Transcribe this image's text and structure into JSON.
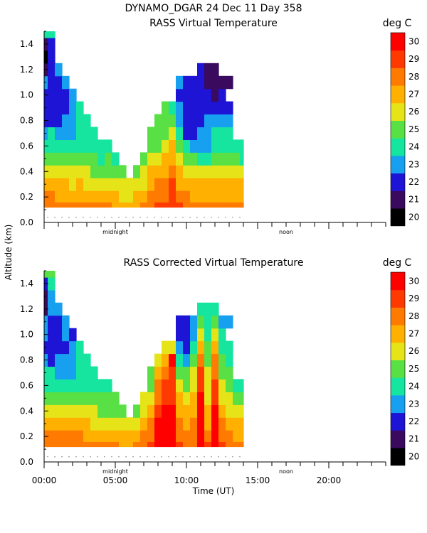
{
  "page": {
    "header_line": "DYNAMO_DGAR  24 Dec 11 Day 358",
    "xlabel": "Time (UT)",
    "ylabel": "Altitude (km)"
  },
  "colorscale": {
    "unit": "deg C",
    "levels": [
      20,
      21,
      22,
      23,
      24,
      25,
      26,
      27,
      28,
      29,
      30
    ],
    "level_labels": [
      "20",
      "21",
      "22",
      "23",
      "24",
      "25",
      "26",
      "27",
      "28",
      "29",
      "30"
    ],
    "colors": [
      "#000000",
      "#3a0a5e",
      "#1e14d6",
      "#18a0f0",
      "#16e5a0",
      "#58e045",
      "#e6e418",
      "#ffb000",
      "#ff7a00",
      "#ff3a00",
      "#ff0000",
      "#ff0000"
    ]
  },
  "chart_data": [
    {
      "type": "heatmap",
      "title": "RASS Virtual Temperature",
      "xlabel": "Time (UT)",
      "ylabel": "Altitude (km)",
      "xlim": [
        0,
        24
      ],
      "ylim": [
        0,
        1.5
      ],
      "x_tick_labels": [
        "00:00",
        "05:00",
        "10:00",
        "15:00",
        "20:00"
      ],
      "y_tick_labels": [
        "0.0",
        "0.2",
        "0.4",
        "0.6",
        "0.8",
        "1.0",
        "1.2",
        "1.4"
      ],
      "x_annotations": [
        "midnight",
        "noon"
      ],
      "x": [
        0.0,
        0.5,
        1.0,
        1.5,
        2.0,
        2.5,
        3.0,
        3.5,
        4.0,
        4.5,
        5.0,
        5.5,
        6.0,
        6.5,
        7.0,
        7.5,
        8.0,
        8.5,
        9.0,
        9.5,
        10.0,
        10.5,
        11.0,
        11.5,
        12.0,
        12.5,
        13.0,
        13.5,
        14.0
      ],
      "y": [
        0.12,
        0.2,
        0.3,
        0.4,
        0.5,
        0.6,
        0.7,
        0.8,
        0.9,
        1.0,
        1.1,
        1.2,
        1.3,
        1.4,
        1.5
      ],
      "z": [
        [
          28.6,
          28.7,
          28.6,
          28.5,
          28.4,
          28.5,
          28.3,
          28.2,
          28.0,
          28.0,
          27.8,
          27.7,
          27.6,
          27.8,
          28.2,
          28.6,
          29.0,
          29.3,
          29.8,
          29.2,
          28.9,
          28.8,
          28.8,
          28.8,
          28.9,
          28.6,
          28.4,
          28.3,
          28.1
        ],
        [
          28.0,
          28.0,
          27.9,
          27.8,
          27.7,
          27.8,
          27.6,
          27.5,
          27.2,
          27.2,
          27.0,
          26.9,
          26.8,
          27.0,
          27.5,
          28.0,
          28.6,
          28.8,
          29.5,
          28.4,
          28.0,
          27.8,
          27.6,
          27.7,
          27.9,
          27.8,
          27.5,
          27.7,
          27.6
        ],
        [
          27.0,
          27.2,
          27.1,
          27.0,
          26.9,
          27.0,
          26.8,
          26.7,
          26.3,
          26.2,
          26.1,
          26.0,
          26.0,
          26.4,
          26.9,
          27.4,
          28.0,
          28.2,
          29.0,
          27.8,
          27.4,
          27.3,
          27.2,
          27.4,
          27.7,
          27.6,
          27.4,
          27.2,
          27.0
        ],
        [
          26.2,
          26.4,
          26.3,
          26.2,
          26.1,
          26.2,
          26.0,
          25.9,
          25.6,
          25.6,
          25.4,
          25.6,
          null,
          25.6,
          26.3,
          27.0,
          27.6,
          27.8,
          28.4,
          27.2,
          26.7,
          26.2,
          26.1,
          26.2,
          26.7,
          26.8,
          26.5,
          26.4,
          26.2
        ],
        [
          25.4,
          25.6,
          25.4,
          25.3,
          25.2,
          25.3,
          25.1,
          25.2,
          24.8,
          25.0,
          24.8,
          null,
          null,
          null,
          25.6,
          26.1,
          26.7,
          27.0,
          27.9,
          26.5,
          25.6,
          25.0,
          24.9,
          24.8,
          25.4,
          25.6,
          25.0,
          25.0,
          24.6
        ],
        [
          24.6,
          24.7,
          24.5,
          24.4,
          24.3,
          24.4,
          24.6,
          24.6,
          24.3,
          24.7,
          null,
          null,
          null,
          null,
          null,
          25.2,
          25.9,
          26.4,
          27.0,
          25.4,
          24.5,
          23.8,
          23.6,
          23.6,
          24.5,
          24.8,
          24.3,
          24.2,
          24.4
        ],
        [
          23.9,
          24.0,
          23.8,
          23.6,
          23.6,
          24.1,
          24.4,
          24.6,
          null,
          null,
          null,
          null,
          null,
          null,
          null,
          25.0,
          25.4,
          25.8,
          26.4,
          24.0,
          22.6,
          22.8,
          23.1,
          23.5,
          24.1,
          24.2,
          24.0,
          null,
          null
        ],
        [
          22.8,
          22.2,
          22.8,
          23.0,
          23.6,
          24.0,
          24.4,
          null,
          null,
          null,
          null,
          null,
          null,
          null,
          null,
          null,
          25.2,
          25.6,
          25.4,
          23.4,
          22.2,
          22.4,
          22.7,
          23.2,
          23.6,
          23.8,
          23.6,
          null,
          null
        ],
        [
          22.6,
          22.0,
          22.2,
          22.6,
          23.4,
          24.0,
          null,
          null,
          null,
          null,
          null,
          null,
          null,
          null,
          null,
          null,
          null,
          25.0,
          24.4,
          23.0,
          22.0,
          22.2,
          22.6,
          22.4,
          22.2,
          22.4,
          22.5,
          null,
          null
        ],
        [
          22.8,
          22.2,
          22.2,
          22.7,
          23.5,
          null,
          null,
          null,
          null,
          null,
          null,
          null,
          null,
          null,
          null,
          null,
          null,
          null,
          null,
          22.8,
          22.2,
          22.6,
          22.3,
          22.0,
          21.8,
          22.0,
          null,
          null,
          null
        ],
        [
          23.0,
          22.6,
          22.6,
          23.2,
          null,
          null,
          null,
          null,
          null,
          null,
          null,
          null,
          null,
          null,
          null,
          null,
          null,
          null,
          null,
          23.0,
          22.6,
          22.8,
          22.3,
          21.8,
          21.6,
          21.6,
          21.4,
          null,
          null
        ],
        [
          21.2,
          22.6,
          23.0,
          null,
          null,
          null,
          null,
          null,
          null,
          null,
          null,
          null,
          null,
          null,
          null,
          null,
          null,
          null,
          null,
          null,
          null,
          null,
          22.5,
          21.9,
          21.6,
          null,
          null,
          null,
          null
        ],
        [
          20.6,
          22.0,
          null,
          null,
          null,
          null,
          null,
          null,
          null,
          null,
          null,
          null,
          null,
          null,
          null,
          null,
          null,
          null,
          null,
          null,
          null,
          null,
          null,
          null,
          null,
          null,
          null,
          null,
          null
        ],
        [
          21.6,
          22.8,
          null,
          null,
          null,
          null,
          null,
          null,
          null,
          null,
          null,
          null,
          null,
          null,
          null,
          null,
          null,
          null,
          null,
          null,
          null,
          null,
          null,
          null,
          null,
          null,
          null,
          null,
          null
        ],
        [
          24.4,
          24.8,
          null,
          null,
          null,
          null,
          null,
          null,
          null,
          null,
          null,
          null,
          null,
          null,
          null,
          null,
          null,
          null,
          null,
          null,
          null,
          null,
          null,
          null,
          null,
          null,
          null,
          null,
          null
        ]
      ]
    },
    {
      "type": "heatmap",
      "title": "RASS Corrected Virtual Temperature",
      "xlabel": "Time (UT)",
      "ylabel": "Altitude (km)",
      "xlim": [
        0,
        24
      ],
      "ylim": [
        0,
        1.5
      ],
      "x_tick_labels": [
        "00:00",
        "05:00",
        "10:00",
        "15:00",
        "20:00"
      ],
      "y_tick_labels": [
        "0.0",
        "0.2",
        "0.4",
        "0.6",
        "0.8",
        "1.0",
        "1.2",
        "1.4"
      ],
      "x_annotations": [
        "midnight",
        "noon"
      ],
      "x": [
        0.0,
        0.5,
        1.0,
        1.5,
        2.0,
        2.5,
        3.0,
        3.5,
        4.0,
        4.5,
        5.0,
        5.5,
        6.0,
        6.5,
        7.0,
        7.5,
        8.0,
        8.5,
        9.0,
        9.5,
        10.0,
        10.5,
        11.0,
        11.5,
        12.0,
        12.5,
        13.0,
        13.5,
        14.0
      ],
      "y": [
        0.12,
        0.2,
        0.3,
        0.4,
        0.5,
        0.6,
        0.7,
        0.8,
        0.9,
        1.0,
        1.1,
        1.2,
        1.3,
        1.4,
        1.5
      ],
      "z": [
        [
          28.8,
          28.9,
          28.8,
          28.7,
          28.6,
          28.6,
          28.5,
          28.4,
          28.2,
          28.2,
          28.0,
          27.9,
          27.9,
          28.1,
          28.6,
          29.4,
          30.2,
          30.6,
          30.6,
          29.2,
          28.8,
          28.9,
          30.4,
          29.0,
          30.3,
          29.2,
          28.7,
          28.5,
          28.4
        ],
        [
          28.2,
          28.3,
          28.2,
          28.1,
          28.0,
          28.0,
          27.8,
          27.7,
          27.4,
          27.4,
          27.2,
          27.1,
          27.1,
          27.4,
          28.0,
          28.8,
          30.2,
          30.4,
          30.6,
          28.6,
          28.3,
          28.6,
          30.4,
          28.4,
          30.2,
          28.6,
          28.2,
          27.9,
          27.8
        ],
        [
          27.4,
          27.6,
          27.4,
          27.3,
          27.2,
          27.2,
          27.0,
          26.9,
          26.6,
          26.5,
          26.4,
          26.3,
          26.3,
          26.8,
          27.4,
          28.1,
          30.0,
          30.3,
          30.5,
          28.0,
          27.6,
          28.2,
          30.4,
          27.8,
          30.1,
          28.1,
          27.6,
          27.2,
          27.0
        ],
        [
          26.6,
          26.8,
          26.6,
          26.5,
          26.4,
          26.3,
          26.2,
          26.1,
          25.9,
          25.8,
          25.6,
          25.8,
          null,
          25.9,
          26.7,
          27.5,
          29.6,
          30.0,
          30.2,
          27.5,
          27.0,
          27.8,
          30.3,
          27.4,
          30.0,
          27.4,
          26.8,
          26.4,
          26.2
        ],
        [
          25.8,
          25.9,
          25.7,
          25.6,
          25.5,
          25.4,
          25.3,
          25.4,
          25.1,
          25.2,
          25.0,
          null,
          null,
          null,
          26.0,
          26.7,
          28.8,
          29.4,
          29.6,
          27.0,
          26.4,
          27.2,
          30.2,
          26.8,
          29.6,
          26.8,
          26.2,
          25.6,
          25.2
        ],
        [
          24.8,
          24.9,
          24.7,
          24.6,
          24.5,
          24.6,
          24.8,
          24.8,
          24.6,
          24.9,
          null,
          null,
          null,
          null,
          null,
          25.9,
          28.0,
          29.0,
          29.4,
          26.2,
          25.8,
          26.6,
          29.8,
          26.4,
          29.2,
          26.2,
          25.6,
          24.9,
          24.6
        ],
        [
          24.0,
          24.1,
          23.9,
          23.8,
          23.8,
          24.2,
          24.6,
          24.8,
          null,
          null,
          null,
          null,
          null,
          null,
          null,
          25.5,
          27.0,
          28.4,
          29.0,
          25.4,
          25.2,
          26.0,
          29.2,
          26.0,
          28.6,
          25.6,
          25.0,
          null,
          null
        ],
        [
          23.0,
          22.6,
          23.0,
          23.2,
          23.8,
          24.2,
          24.6,
          null,
          null,
          null,
          null,
          null,
          null,
          null,
          null,
          null,
          26.0,
          27.6,
          30.4,
          24.6,
          23.4,
          25.2,
          28.6,
          25.6,
          28.2,
          25.0,
          24.5,
          null,
          null
        ],
        [
          22.8,
          22.4,
          22.6,
          22.8,
          23.6,
          24.2,
          null,
          null,
          null,
          null,
          null,
          null,
          null,
          null,
          null,
          null,
          null,
          26.8,
          26.0,
          23.8,
          22.8,
          24.4,
          27.6,
          25.2,
          27.4,
          24.4,
          24.0,
          null,
          null
        ],
        [
          23.0,
          22.6,
          22.6,
          23.0,
          22.2,
          null,
          null,
          null,
          null,
          null,
          null,
          null,
          null,
          null,
          null,
          null,
          null,
          null,
          null,
          22.4,
          22.2,
          23.6,
          26.8,
          24.8,
          26.6,
          24.0,
          null,
          null,
          null
        ],
        [
          23.2,
          22.8,
          22.8,
          23.4,
          null,
          null,
          null,
          null,
          null,
          null,
          null,
          null,
          null,
          null,
          null,
          null,
          null,
          null,
          null,
          22.2,
          22.0,
          23.0,
          25.6,
          24.4,
          25.4,
          23.8,
          23.4,
          null,
          null
        ],
        [
          21.4,
          23.2,
          23.4,
          null,
          null,
          null,
          null,
          null,
          null,
          null,
          null,
          null,
          null,
          null,
          null,
          null,
          null,
          null,
          null,
          null,
          null,
          null,
          24.4,
          24.4,
          24.6,
          null,
          null,
          null,
          null
        ],
        [
          21.0,
          23.0,
          null,
          null,
          null,
          null,
          null,
          null,
          null,
          null,
          null,
          null,
          null,
          null,
          null,
          null,
          null,
          null,
          null,
          null,
          null,
          null,
          null,
          null,
          null,
          null,
          null,
          null,
          null
        ],
        [
          22.6,
          24.2,
          null,
          null,
          null,
          null,
          null,
          null,
          null,
          null,
          null,
          null,
          null,
          null,
          null,
          null,
          null,
          null,
          null,
          null,
          null,
          null,
          null,
          null,
          null,
          null,
          null,
          null,
          null
        ],
        [
          25.0,
          25.4,
          null,
          null,
          null,
          null,
          null,
          null,
          null,
          null,
          null,
          null,
          null,
          null,
          null,
          null,
          null,
          null,
          null,
          null,
          null,
          null,
          null,
          null,
          null,
          null,
          null,
          null,
          null
        ]
      ]
    }
  ]
}
